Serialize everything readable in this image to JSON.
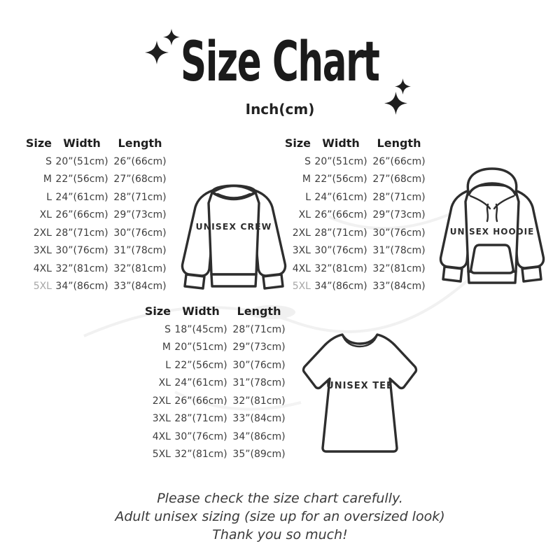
{
  "header": {
    "title": "Size Chart",
    "subtitle": "Inch(cm)"
  },
  "garments": {
    "crew_label": "UNISEX CREW",
    "hoodie_label": "UNISEX HOODIE",
    "tee_label": "UNISEX TEE"
  },
  "footer": {
    "lines": [
      "Please check the size chart carefully.",
      "Adult unisex sizing (size up for an oversized look)",
      "Thank you so much!"
    ]
  },
  "colors": {
    "heading": "#1b1b1b",
    "text": "#3d3d3d",
    "muted_size": "#a6a6a6",
    "line_art": "#2e2e2e",
    "background": "#ffffff"
  },
  "chart_data": [
    {
      "type": "table",
      "title": "UNISEX CREW",
      "unit": "Inch(cm)",
      "columns": [
        "Size",
        "Width",
        "Length"
      ],
      "rows": [
        [
          "S",
          "20”(51cm)",
          "26”(66cm)"
        ],
        [
          "M",
          "22”(56cm)",
          "27”(68cm)"
        ],
        [
          "L",
          "24”(61cm)",
          "28”(71cm)"
        ],
        [
          "XL",
          "26”(66cm)",
          "29”(73cm)"
        ],
        [
          "2XL",
          "28”(71cm)",
          "30”(76cm)"
        ],
        [
          "3XL",
          "30”(76cm)",
          "31”(78cm)"
        ],
        [
          "4XL",
          "32”(81cm)",
          "32”(81cm)"
        ],
        [
          "5XL",
          "34”(86cm)",
          "33”(84cm)"
        ]
      ],
      "muted_size_rows": [
        7
      ]
    },
    {
      "type": "table",
      "title": "UNISEX HOODIE",
      "unit": "Inch(cm)",
      "columns": [
        "Size",
        "Width",
        "Length"
      ],
      "rows": [
        [
          "S",
          "20”(51cm)",
          "26”(66cm)"
        ],
        [
          "M",
          "22”(56cm)",
          "27”(68cm)"
        ],
        [
          "L",
          "24”(61cm)",
          "28”(71cm)"
        ],
        [
          "XL",
          "26”(66cm)",
          "29”(73cm)"
        ],
        [
          "2XL",
          "28”(71cm)",
          "30”(76cm)"
        ],
        [
          "3XL",
          "30”(76cm)",
          "31”(78cm)"
        ],
        [
          "4XL",
          "32”(81cm)",
          "32”(81cm)"
        ],
        [
          "5XL",
          "34”(86cm)",
          "33”(84cm)"
        ]
      ],
      "muted_size_rows": [
        7
      ]
    },
    {
      "type": "table",
      "title": "UNISEX TEE",
      "unit": "Inch(cm)",
      "columns": [
        "Size",
        "Width",
        "Length"
      ],
      "rows": [
        [
          "S",
          "18”(45cm)",
          "28”(71cm)"
        ],
        [
          "M",
          "20”(51cm)",
          "29”(73cm)"
        ],
        [
          "L",
          "22”(56cm)",
          "30”(76cm)"
        ],
        [
          "XL",
          "24”(61cm)",
          "31”(78cm)"
        ],
        [
          "2XL",
          "26”(66cm)",
          "32”(81cm)"
        ],
        [
          "3XL",
          "28”(71cm)",
          "33”(84cm)"
        ],
        [
          "4XL",
          "30”(76cm)",
          "34”(86cm)"
        ],
        [
          "5XL",
          "32”(81cm)",
          "35”(89cm)"
        ]
      ],
      "muted_size_rows": []
    }
  ]
}
